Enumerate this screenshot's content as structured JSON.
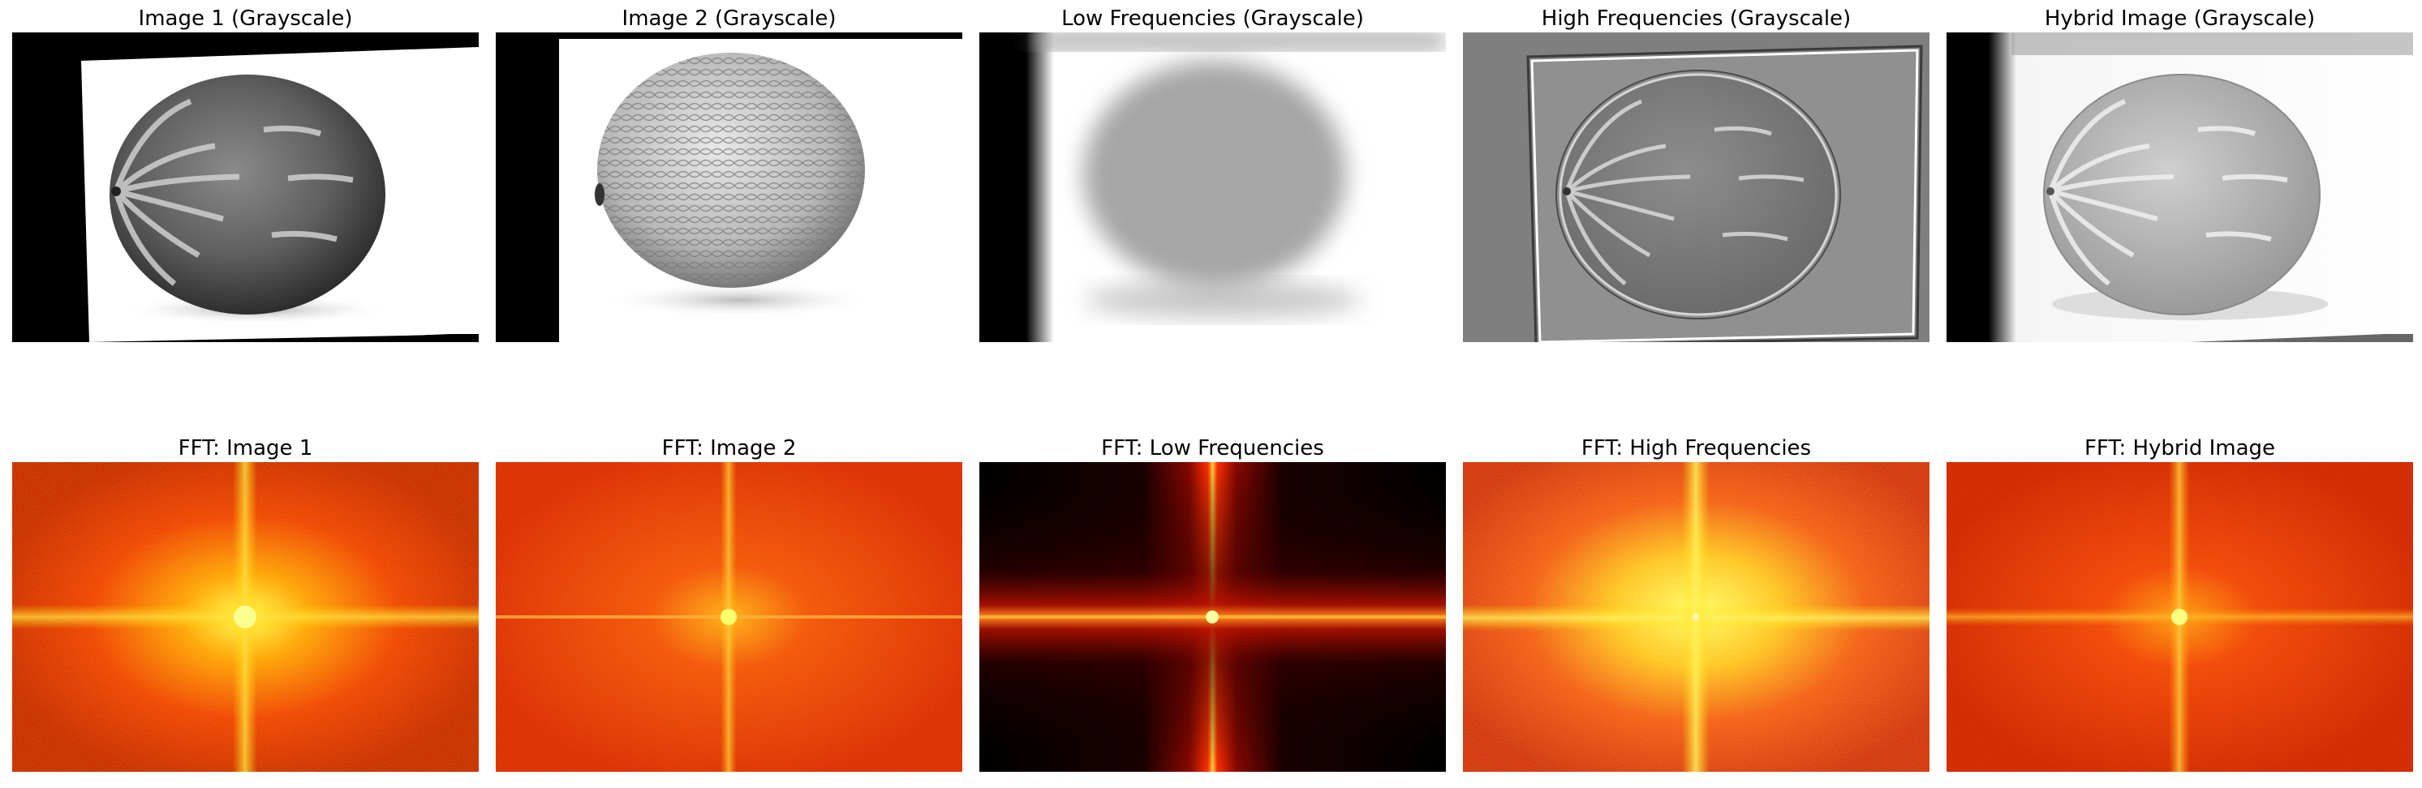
{
  "figure": {
    "top_row": [
      {
        "title": "Image 1 (Grayscale)",
        "content": "grayscale-watermelon"
      },
      {
        "title": "Image 2 (Grayscale)",
        "content": "grayscale-cantaloupe"
      },
      {
        "title": "Low Frequencies (Grayscale)",
        "content": "blurred-cantaloupe"
      },
      {
        "title": "High Frequencies (Grayscale)",
        "content": "high-pass-watermelon"
      },
      {
        "title": "Hybrid Image (Grayscale)",
        "content": "hybrid-image"
      }
    ],
    "bottom_row": [
      {
        "title": "FFT: Image 1",
        "content": "fft-spectrum-heatmap"
      },
      {
        "title": "FFT: Image 2",
        "content": "fft-spectrum-heatmap"
      },
      {
        "title": "FFT: Low Frequencies",
        "content": "fft-spectrum-heatmap"
      },
      {
        "title": "FFT: High Frequencies",
        "content": "fft-spectrum-heatmap"
      },
      {
        "title": "FFT: Hybrid Image",
        "content": "fft-spectrum-heatmap"
      }
    ],
    "colormap": "hot"
  }
}
